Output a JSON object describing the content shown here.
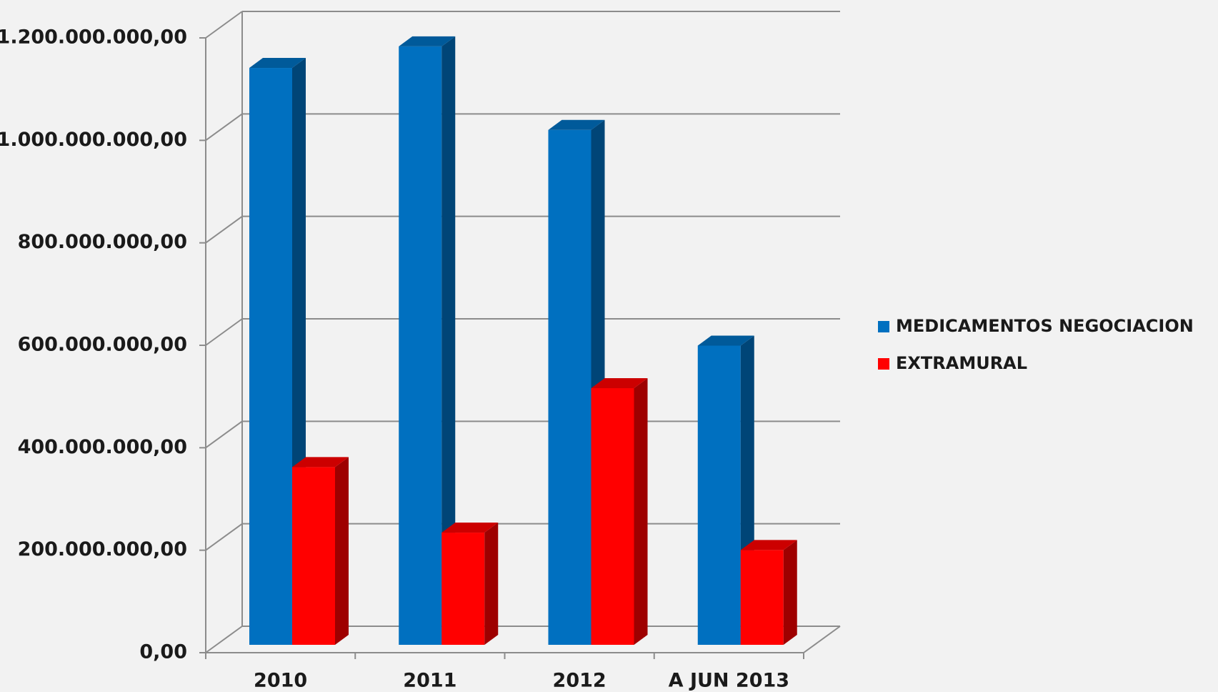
{
  "chart_data": {
    "type": "bar3d",
    "categories": [
      "2010",
      "2011",
      "2012",
      "A JUN 2013"
    ],
    "series": [
      {
        "name": "MEDICAMENTOS NEGOCIACION",
        "color": "#0070c0",
        "values": [
          1126000000,
          1168000000,
          1005000000,
          584000000
        ]
      },
      {
        "name": "EXTRAMURAL",
        "color": "#ff0000",
        "values": [
          347000000,
          219000000,
          501000000,
          185000000
        ]
      }
    ],
    "ylim": [
      0,
      1200000000
    ],
    "yticks": [
      {
        "value": 0,
        "label": "0,00"
      },
      {
        "value": 200000000,
        "label": "200.000.000,00"
      },
      {
        "value": 400000000,
        "label": "400.000.000,00"
      },
      {
        "value": 600000000,
        "label": "600.000.000,00"
      },
      {
        "value": 800000000,
        "label": "800.000.000,00"
      },
      {
        "value": 1000000000,
        "label": "1.000.000.000,00"
      },
      {
        "value": 1200000000,
        "label": "1.200.000.000,00"
      }
    ],
    "grid": true,
    "legend": "right"
  }
}
